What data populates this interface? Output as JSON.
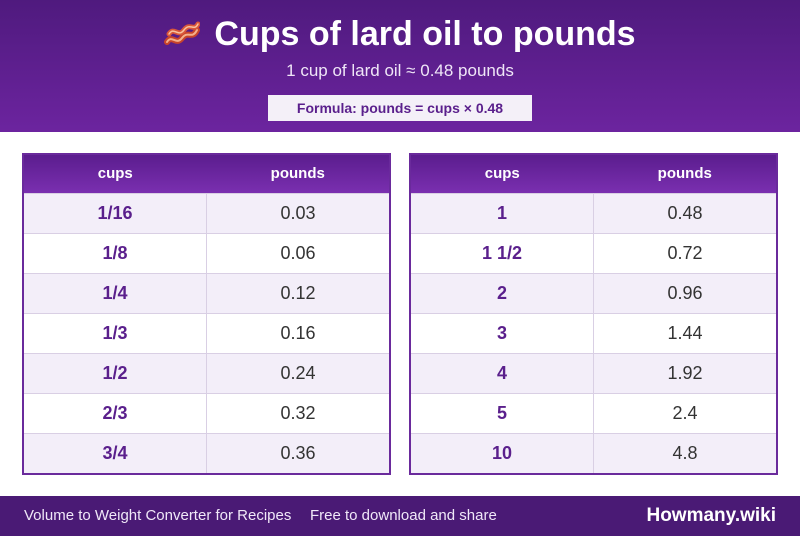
{
  "header": {
    "title": "Cups of lard oil to pounds",
    "title_icon": "bacon-icon",
    "subtitle": "1 cup of lard oil ≈ 0.48 pounds",
    "formula": "Formula: pounds = cups × 0.48"
  },
  "tables": [
    {
      "col1": "cups",
      "col2": "pounds",
      "rows": [
        {
          "cups": "1/16",
          "pounds": "0.03"
        },
        {
          "cups": "1/8",
          "pounds": "0.06"
        },
        {
          "cups": "1/4",
          "pounds": "0.12"
        },
        {
          "cups": "1/3",
          "pounds": "0.16"
        },
        {
          "cups": "1/2",
          "pounds": "0.24"
        },
        {
          "cups": "2/3",
          "pounds": "0.32"
        },
        {
          "cups": "3/4",
          "pounds": "0.36"
        }
      ]
    },
    {
      "col1": "cups",
      "col2": "pounds",
      "rows": [
        {
          "cups": "1",
          "pounds": "0.48"
        },
        {
          "cups": "1 1/2",
          "pounds": "0.72"
        },
        {
          "cups": "2",
          "pounds": "0.96"
        },
        {
          "cups": "3",
          "pounds": "1.44"
        },
        {
          "cups": "4",
          "pounds": "1.92"
        },
        {
          "cups": "5",
          "pounds": "2.4"
        },
        {
          "cups": "10",
          "pounds": "4.8"
        }
      ]
    }
  ],
  "footer": {
    "left": "Volume to Weight Converter for Recipes",
    "middle": "Free to download and share",
    "brand": "Howmany.wiki"
  },
  "colors": {
    "primary": "#5a1f8c",
    "header_bg": "#6c249f",
    "footer_bg": "#4a1a75"
  }
}
